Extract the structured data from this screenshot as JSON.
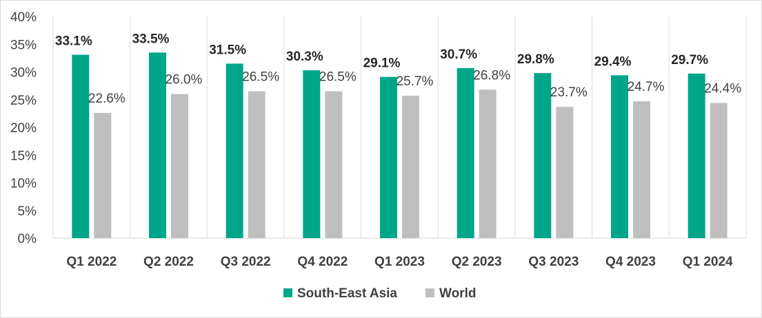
{
  "chart_data": {
    "type": "bar",
    "categories": [
      "Q1 2022",
      "Q2 2022",
      "Q3 2022",
      "Q4 2022",
      "Q1 2023",
      "Q2 2023",
      "Q3 2023",
      "Q4 2023",
      "Q1 2024"
    ],
    "series": [
      {
        "name": "South-East Asia",
        "color": "#00a68a",
        "values": [
          33.1,
          33.5,
          31.5,
          30.3,
          29.1,
          30.7,
          29.8,
          29.4,
          29.7
        ],
        "labels": [
          "33.1%",
          "33.5%",
          "31.5%",
          "30.3%",
          "29.1%",
          "30.7%",
          "29.8%",
          "29.4%",
          "29.7%"
        ]
      },
      {
        "name": "World",
        "color": "#bfbfbf",
        "values": [
          22.6,
          26.0,
          26.5,
          26.5,
          25.7,
          26.8,
          23.7,
          24.7,
          24.4
        ],
        "labels": [
          "22.6%",
          "26.0%",
          "26.5%",
          "26.5%",
          "25.7%",
          "26.8%",
          "23.7%",
          "24.7%",
          "24.4%"
        ]
      }
    ],
    "ylim": [
      0,
      40
    ],
    "yticks": [
      0,
      5,
      10,
      15,
      20,
      25,
      30,
      35,
      40
    ],
    "ytick_labels": [
      "0%",
      "5%",
      "10%",
      "15%",
      "20%",
      "25%",
      "30%",
      "35%",
      "40%"
    ],
    "grid": "vertical category dividers",
    "legend_position": "bottom-center",
    "axis_color": "#d9d9d9"
  }
}
